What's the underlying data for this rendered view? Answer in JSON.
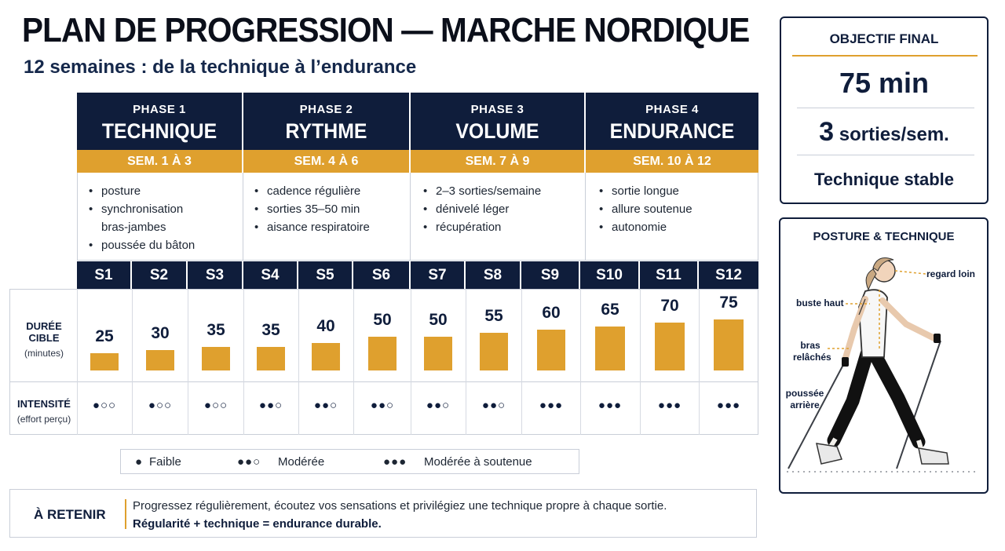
{
  "header": {
    "title": "PLAN DE PROGRESSION — MARCHE NORDIQUE",
    "subtitle": "12 semaines : de la technique à l’endurance"
  },
  "phases": [
    {
      "number": "PHASE 1",
      "name": "TECHNIQUE",
      "weeks": "SEM. 1 À 3",
      "points": [
        "posture",
        "synchronisation bras-jambes",
        "poussée du bâton"
      ]
    },
    {
      "number": "PHASE 2",
      "name": "RYTHME",
      "weeks": "SEM. 4 À 6",
      "points": [
        "cadence régulière",
        "sorties 35–50 min",
        "aisance respiratoire"
      ]
    },
    {
      "number": "PHASE 3",
      "name": "VOLUME",
      "weeks": "SEM. 7 À 9",
      "points": [
        "2–3 sorties/semaine",
        "dénivelé léger",
        "récupération"
      ]
    },
    {
      "number": "PHASE 4",
      "name": "ENDURANCE",
      "weeks": "SEM. 10 À 12",
      "points": [
        "sortie longue",
        "allure soutenue",
        "autonomie"
      ]
    }
  ],
  "rows": {
    "duration_label": "DURÉE CIBLE",
    "duration_unit": "(minutes)",
    "intensity_label": "INTENSITÉ",
    "intensity_unit": "(effort perçu)"
  },
  "chart_data": {
    "type": "bar",
    "categories": [
      "S1",
      "S2",
      "S3",
      "S4",
      "S5",
      "S6",
      "S7",
      "S8",
      "S9",
      "S10",
      "S11",
      "S12"
    ],
    "series": [
      {
        "values": [
          25,
          30,
          35,
          35,
          40,
          50,
          50,
          55,
          60,
          65,
          70,
          75
        ]
      }
    ],
    "intensity": [
      "●○○",
      "●○○",
      "●○○",
      "●●○",
      "●●○",
      "●●○",
      "●●○",
      "●●○",
      "●●●",
      "●●●",
      "●●●",
      "●●●"
    ],
    "intensity_levels": [
      1,
      1,
      1,
      2,
      2,
      2,
      2,
      2,
      3,
      3,
      3,
      3
    ]
  },
  "legend": {
    "low_symbol": "●",
    "low_label": "Faible",
    "mid_symbol": "●●○",
    "mid_label": "Modérée",
    "high_symbol": "●●●",
    "high_label": "Modérée à soutenue"
  },
  "remember": {
    "label": "À RETENIR",
    "text": "Progressez régulièrement, écoutez vos sensations et privilégiez une technique propre à chaque sortie.",
    "emphasis": "Régularité + technique = endurance durable."
  },
  "goal": {
    "title": "OBJECTIF FINAL",
    "duration": "75 min",
    "frequency_number": "3",
    "frequency_text": "sorties/sem.",
    "technique": "Technique stable"
  },
  "posture": {
    "title": "POSTURE & TECHNIQUE",
    "gaze": "regard loin",
    "chest": "buste haut",
    "arms": "bras relâchés",
    "push": "poussée arrière"
  },
  "colors": {
    "navy": "#0f1d3b",
    "gold": "#dfa02e"
  }
}
